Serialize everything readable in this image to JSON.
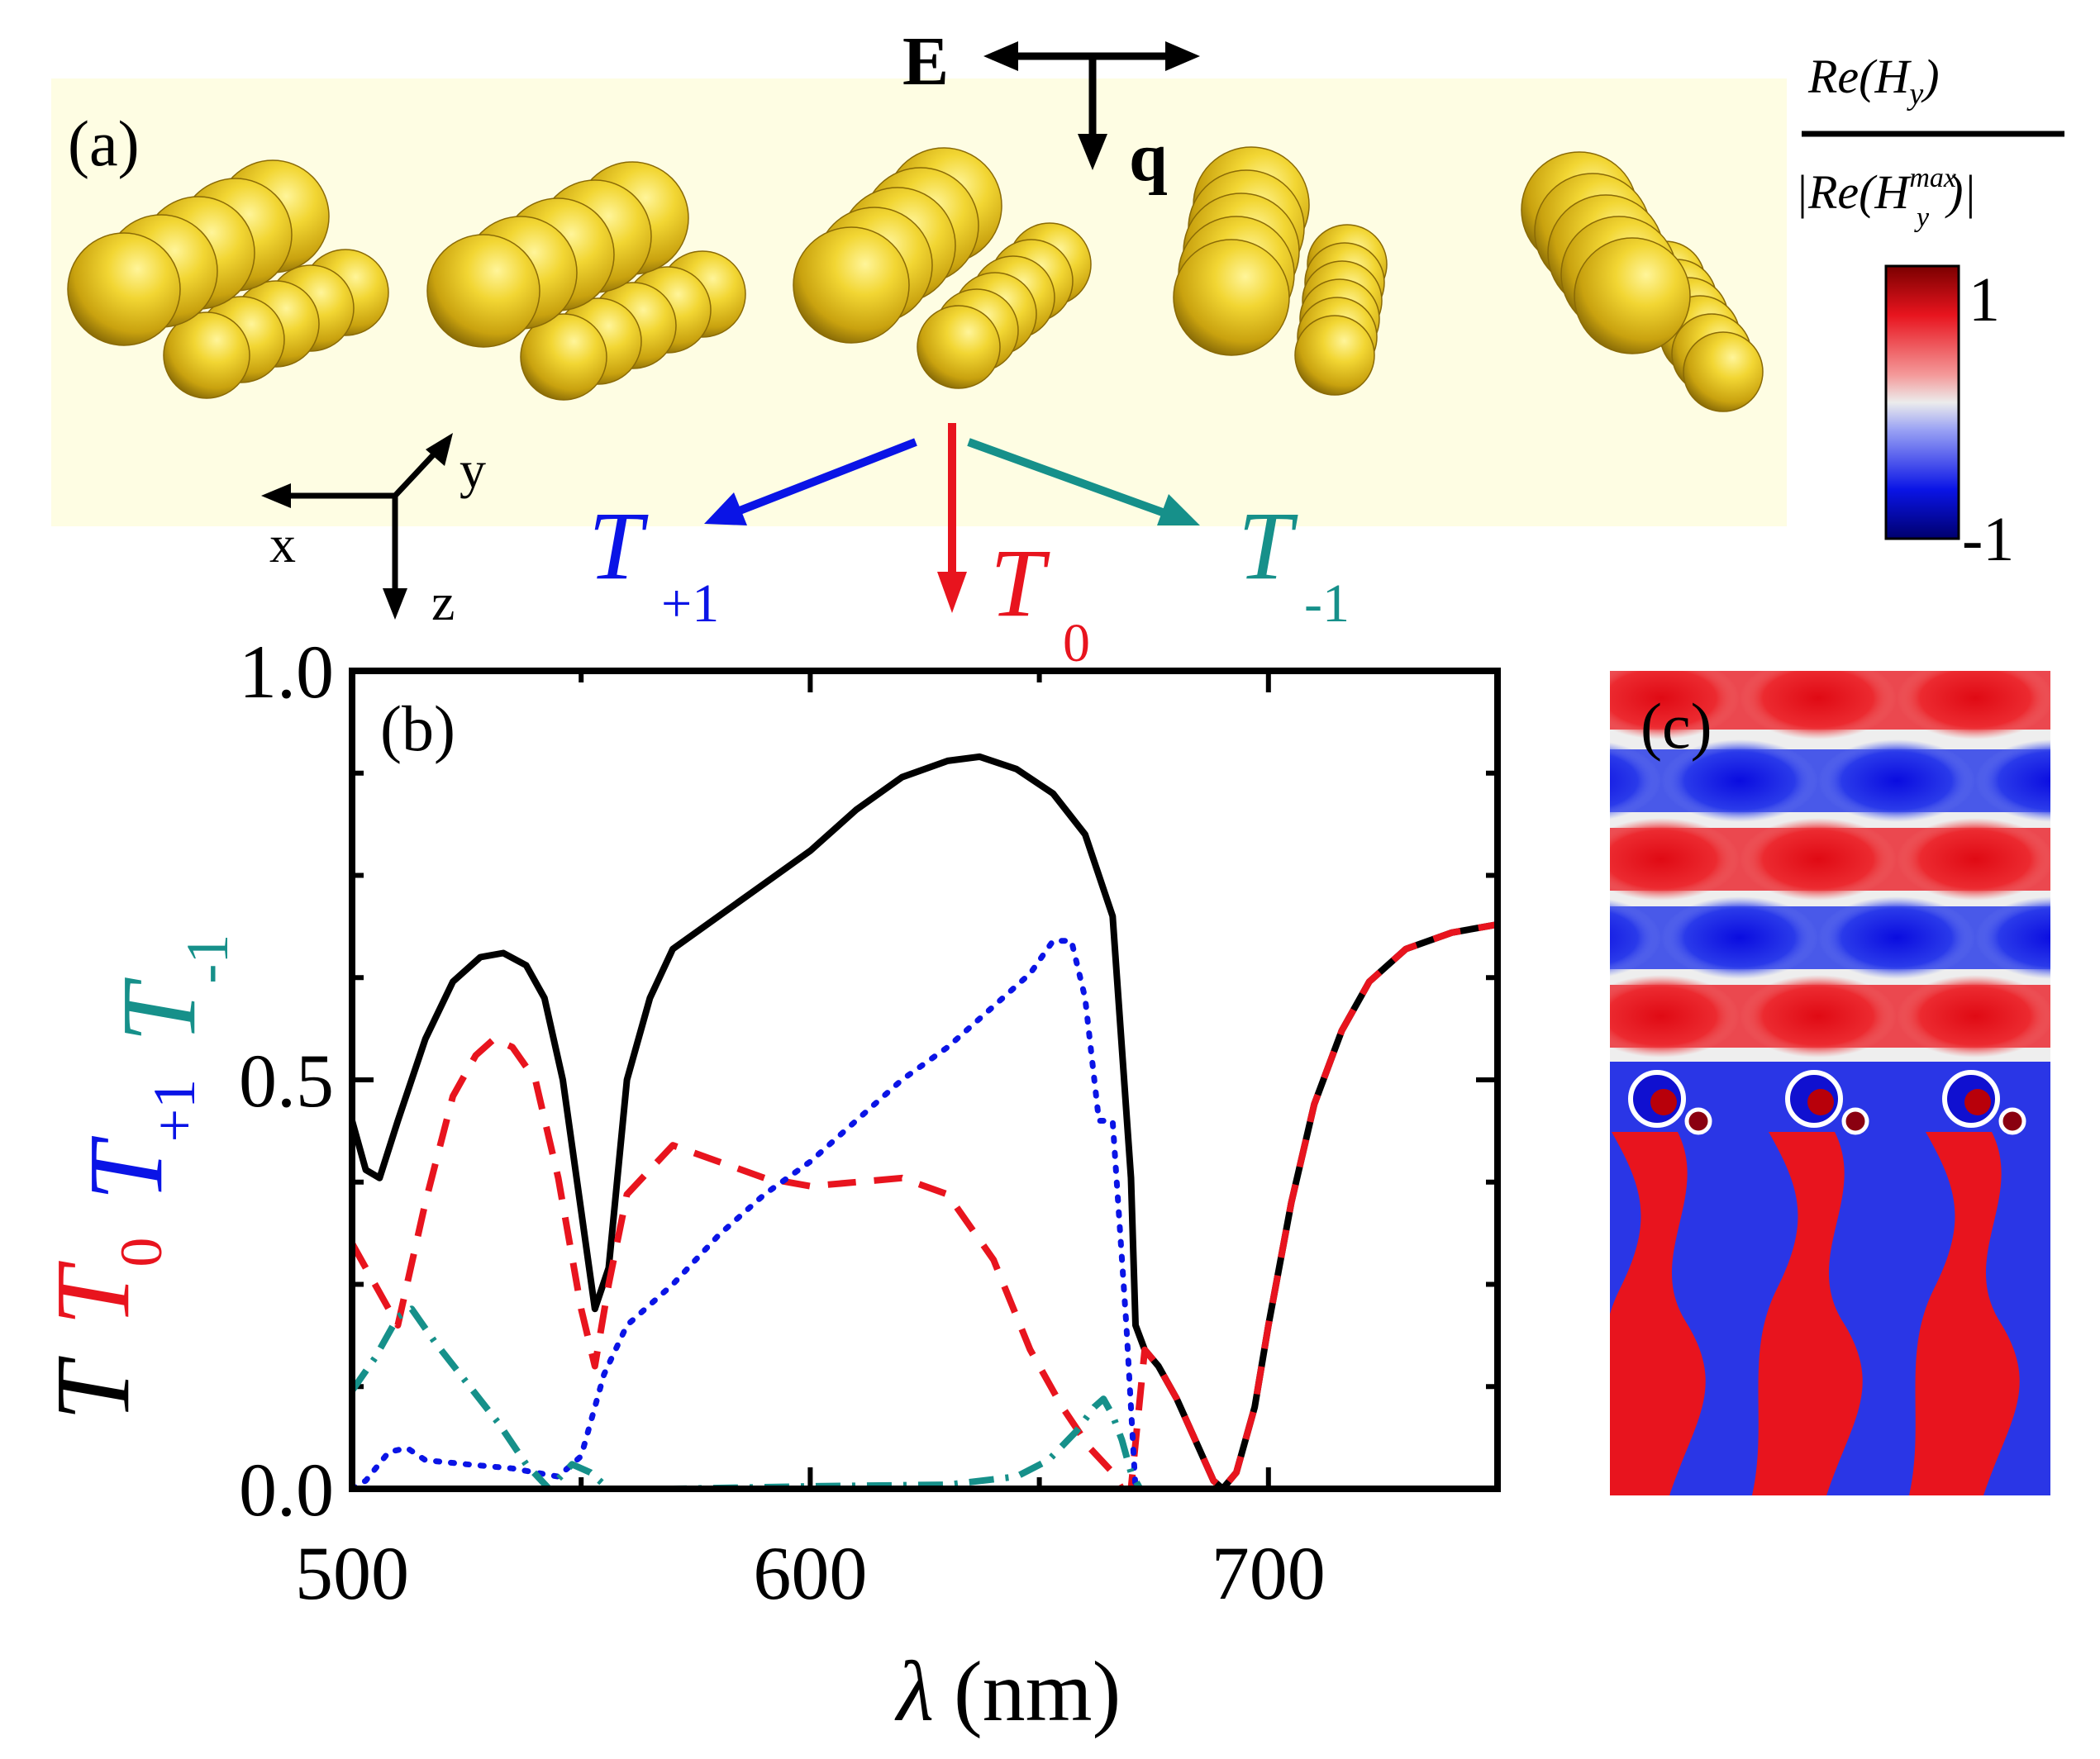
{
  "panel_a": {
    "label": "(a)",
    "e_label": "E",
    "q_label": "q",
    "axes": {
      "x": "x",
      "y": "y",
      "z": "z"
    },
    "orders": [
      {
        "sym": "T",
        "sub": "+1",
        "color": "#0a14e6"
      },
      {
        "sym": "T",
        "sub": "0",
        "color": "#e8141e"
      },
      {
        "sym": "T",
        "sub": "-1",
        "color": "#16908a"
      }
    ],
    "background_color": "#fefde3",
    "particle_color": "#e6c228"
  },
  "colorbar": {
    "numerator": "Re(H",
    "numerator_sub": "y",
    "denominator": "|Re(H",
    "denominator_sub": "y",
    "denominator_sup": "max",
    "max_label": "1",
    "min_label": "-1"
  },
  "panel_c": {
    "label": "(c)"
  },
  "chart_data": {
    "type": "line",
    "panel_label": "(b)",
    "xlabel_sym": "λ",
    "xlabel_unit": "(nm)",
    "ylabel": [
      {
        "sym": "T",
        "sub": "",
        "color": "#000000"
      },
      {
        "sym": "T",
        "sub": "0",
        "color": "#e8141e"
      },
      {
        "sym": "T",
        "sub": "+1",
        "color": "#0a14e6"
      },
      {
        "sym": "T",
        "sub": "-1",
        "color": "#16908a"
      }
    ],
    "xlim": [
      500,
      750
    ],
    "ylim": [
      0,
      1
    ],
    "xticks": [
      500,
      600,
      700
    ],
    "yticks": [
      "0.0",
      "0.5",
      "1.0"
    ],
    "series": [
      {
        "color": "#000000",
        "style": "solid",
        "points": [
          [
            500,
            0.45
          ],
          [
            503,
            0.39
          ],
          [
            506,
            0.38
          ],
          [
            510,
            0.45
          ],
          [
            516,
            0.55
          ],
          [
            522,
            0.62
          ],
          [
            528,
            0.65
          ],
          [
            533,
            0.655
          ],
          [
            538,
            0.64
          ],
          [
            542,
            0.6
          ],
          [
            546,
            0.5
          ],
          [
            550,
            0.34
          ],
          [
            553,
            0.22
          ],
          [
            556,
            0.27
          ],
          [
            560,
            0.5
          ],
          [
            565,
            0.6
          ],
          [
            570,
            0.66
          ],
          [
            580,
            0.7
          ],
          [
            590,
            0.74
          ],
          [
            600,
            0.78
          ],
          [
            610,
            0.83
          ],
          [
            620,
            0.87
          ],
          [
            630,
            0.89
          ],
          [
            637,
            0.895
          ],
          [
            645,
            0.88
          ],
          [
            653,
            0.85
          ],
          [
            660,
            0.8
          ],
          [
            666,
            0.7
          ],
          [
            670,
            0.38
          ],
          [
            671,
            0.2
          ],
          [
            673,
            0.17
          ],
          [
            676,
            0.15
          ],
          [
            680,
            0.11
          ],
          [
            684,
            0.06
          ],
          [
            688,
            0.01
          ],
          [
            690,
            0.0
          ],
          [
            693,
            0.02
          ],
          [
            697,
            0.1
          ],
          [
            700,
            0.2
          ],
          [
            705,
            0.35
          ],
          [
            710,
            0.47
          ],
          [
            716,
            0.56
          ],
          [
            722,
            0.62
          ],
          [
            730,
            0.66
          ],
          [
            740,
            0.68
          ],
          [
            750,
            0.69
          ]
        ]
      },
      {
        "color": "#e8141e",
        "style": "dashed",
        "points": [
          [
            500,
            0.3
          ],
          [
            505,
            0.25
          ],
          [
            510,
            0.2
          ],
          [
            516,
            0.35
          ],
          [
            522,
            0.48
          ],
          [
            527,
            0.53
          ],
          [
            531,
            0.55
          ],
          [
            535,
            0.54
          ],
          [
            540,
            0.5
          ],
          [
            545,
            0.38
          ],
          [
            550,
            0.22
          ],
          [
            553,
            0.15
          ],
          [
            556,
            0.25
          ],
          [
            560,
            0.36
          ],
          [
            570,
            0.42
          ],
          [
            580,
            0.4
          ],
          [
            590,
            0.38
          ],
          [
            600,
            0.37
          ],
          [
            610,
            0.375
          ],
          [
            620,
            0.38
          ],
          [
            630,
            0.36
          ],
          [
            640,
            0.28
          ],
          [
            648,
            0.17
          ],
          [
            655,
            0.1
          ],
          [
            661,
            0.05
          ],
          [
            666,
            0.02
          ],
          [
            668,
            0.0
          ],
          [
            670,
            0.0
          ],
          [
            673,
            0.17
          ],
          [
            676,
            0.15
          ],
          [
            680,
            0.11
          ],
          [
            684,
            0.06
          ],
          [
            688,
            0.01
          ],
          [
            690,
            0.0
          ],
          [
            693,
            0.02
          ],
          [
            697,
            0.1
          ],
          [
            700,
            0.2
          ],
          [
            705,
            0.35
          ],
          [
            710,
            0.47
          ],
          [
            716,
            0.56
          ],
          [
            722,
            0.62
          ],
          [
            730,
            0.66
          ],
          [
            740,
            0.68
          ],
          [
            750,
            0.69
          ]
        ]
      },
      {
        "color": "#0a14e6",
        "style": "dotted",
        "points": [
          [
            500,
            0.0
          ],
          [
            503,
            0.01
          ],
          [
            508,
            0.045
          ],
          [
            512,
            0.05
          ],
          [
            516,
            0.035
          ],
          [
            525,
            0.03
          ],
          [
            535,
            0.025
          ],
          [
            545,
            0.015
          ],
          [
            550,
            0.04
          ],
          [
            555,
            0.14
          ],
          [
            560,
            0.2
          ],
          [
            570,
            0.25
          ],
          [
            580,
            0.31
          ],
          [
            590,
            0.36
          ],
          [
            600,
            0.4
          ],
          [
            610,
            0.45
          ],
          [
            620,
            0.5
          ],
          [
            630,
            0.54
          ],
          [
            640,
            0.59
          ],
          [
            648,
            0.63
          ],
          [
            653,
            0.67
          ],
          [
            657,
            0.67
          ],
          [
            660,
            0.6
          ],
          [
            663,
            0.45
          ],
          [
            666,
            0.45
          ],
          [
            669,
            0.2
          ],
          [
            671,
            0.0
          ],
          [
            750,
            0.0
          ]
        ]
      },
      {
        "color": "#16908a",
        "style": "dashdot",
        "points": [
          [
            500,
            0.12
          ],
          [
            505,
            0.16
          ],
          [
            510,
            0.21
          ],
          [
            513,
            0.22
          ],
          [
            518,
            0.18
          ],
          [
            525,
            0.13
          ],
          [
            532,
            0.08
          ],
          [
            538,
            0.03
          ],
          [
            543,
            0.0
          ],
          [
            548,
            0.03
          ],
          [
            552,
            0.02
          ],
          [
            556,
            0.0
          ],
          [
            570,
            0.0
          ],
          [
            600,
            0.003
          ],
          [
            630,
            0.005
          ],
          [
            645,
            0.015
          ],
          [
            652,
            0.035
          ],
          [
            658,
            0.07
          ],
          [
            662,
            0.1
          ],
          [
            664,
            0.11
          ],
          [
            666,
            0.09
          ],
          [
            668,
            0.06
          ],
          [
            670,
            0.02
          ],
          [
            672,
            0.0
          ],
          [
            750,
            0.0
          ]
        ]
      }
    ]
  }
}
